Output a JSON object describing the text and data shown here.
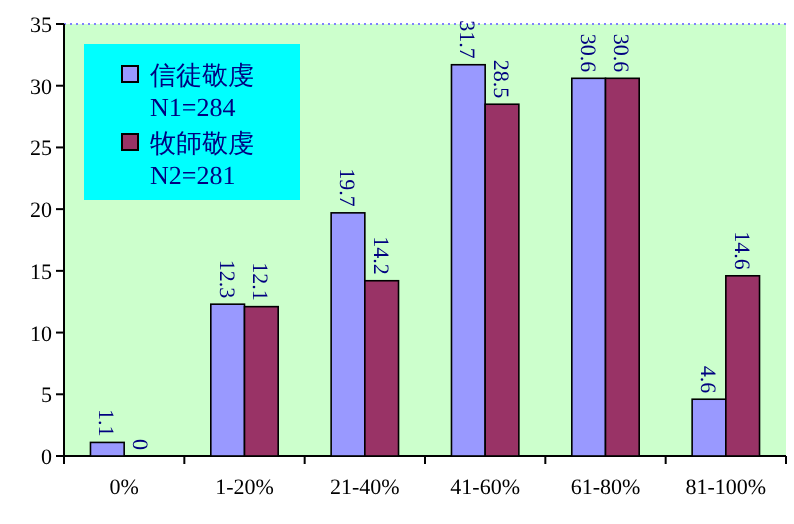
{
  "chart_data": {
    "type": "bar",
    "categories": [
      "0%",
      "1-20%",
      "21-40%",
      "41-60%",
      "61-80%",
      "81-100%"
    ],
    "series": [
      {
        "name": "信徒敬虔 N1=284",
        "color": "#9999ff",
        "values": [
          1.1,
          12.3,
          19.7,
          31.7,
          30.6,
          4.6
        ]
      },
      {
        "name": "牧師敬虔 N2=281",
        "color": "#993366",
        "values": [
          0,
          12.1,
          14.2,
          28.5,
          30.6,
          14.6
        ]
      }
    ],
    "ylim": [
      0,
      35
    ],
    "yticks": [
      0,
      5,
      10,
      15,
      20,
      25,
      30,
      35
    ],
    "data_labels": true,
    "legend": "top left",
    "grid": false
  }
}
